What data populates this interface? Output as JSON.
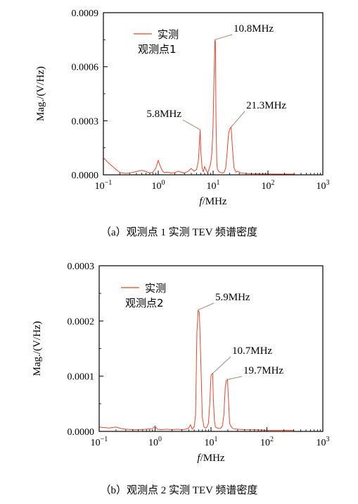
{
  "chart_data": [
    {
      "type": "line",
      "x_scale": "log",
      "xlim": [
        0.1,
        1000
      ],
      "ylim": [
        0,
        0.0009
      ],
      "xlabel_italic": "f",
      "xlabel_rest": "/MHz",
      "ylabel": "Mag./(V/Hz)",
      "x_ticks": [
        0.1,
        1,
        10,
        100,
        1000
      ],
      "x_tick_bases": [
        "10",
        "10",
        "10",
        "10",
        "10"
      ],
      "x_tick_exps": [
        "−1",
        "0",
        "1",
        "2",
        "3"
      ],
      "y_ticks": [
        0,
        0.0003,
        0.0006,
        0.0009
      ],
      "y_tick_labels": [
        "0.0000",
        "0.0003",
        "0.0006",
        "0.0009"
      ],
      "series": [
        {
          "name": "实测",
          "name_line2": "观测点1",
          "color": "#e8452c",
          "x": [
            0.1,
            0.13,
            0.17,
            0.2,
            0.25,
            0.3,
            0.4,
            0.5,
            0.6,
            0.7,
            0.8,
            0.9,
            1.0,
            1.05,
            1.1,
            1.2,
            1.3,
            1.5,
            1.7,
            2.0,
            2.3,
            2.6,
            3.0,
            3.5,
            4.0,
            4.5,
            5.0,
            5.4,
            5.8,
            6.0,
            6.3,
            6.6,
            7.0,
            7.5,
            8.0,
            8.5,
            9.0,
            9.5,
            10.0,
            10.4,
            10.8,
            11.0,
            11.3,
            11.7,
            12.0,
            13.0,
            14.0,
            15.0,
            16.0,
            17.0,
            18.0,
            19.0,
            20.0,
            21.3,
            22.5,
            24.0,
            26.0,
            28.0,
            32.0,
            40.0,
            50.0,
            70.0,
            100.0,
            150.0,
            200.0,
            300.0
          ],
          "y": [
            9.5e-05,
            6e-05,
            3e-05,
            1.2e-05,
            8e-06,
            1e-05,
            1.8e-05,
            2.5e-05,
            1.8e-05,
            1e-05,
            1.5e-05,
            3.5e-05,
            8e-05,
            6e-05,
            4.5e-05,
            2e-05,
            1.2e-05,
            1.5e-05,
            1e-05,
            1.2e-05,
            2e-05,
            1.5e-05,
            1e-05,
            2e-05,
            3.5e-05,
            2e-05,
            3e-05,
            8e-05,
            0.00025,
            0.00012,
            4e-05,
            1.5e-05,
            4.5e-05,
            2.5e-05,
            1e-05,
            3.5e-05,
            6e-05,
            0.00012,
            0.00028,
            0.00055,
            0.00075,
            0.00074,
            0.0003,
            6e-05,
            3e-05,
            1.5e-05,
            1.2e-05,
            1e-05,
            1.5e-05,
            4e-05,
            0.00012,
            0.00022,
            0.000255,
            0.000265,
            0.00015,
            4e-05,
            1.5e-05,
            2e-05,
            1e-05,
            8e-06,
            6e-06,
            5e-06,
            5e-06,
            4e-06,
            4e-06,
            4e-06
          ]
        }
      ],
      "annotations": [
        {
          "text": "10.8MHz",
          "x": 10.8,
          "y": 0.00075
        },
        {
          "text": "5.8MHz",
          "x": 5.8,
          "y": 0.00025
        },
        {
          "text": "21.3MHz",
          "x": 21.3,
          "y": 0.000265
        }
      ],
      "caption": "（a）观测点 1 实测 TEV 频谱密度"
    },
    {
      "type": "line",
      "x_scale": "log",
      "xlim": [
        0.1,
        1000
      ],
      "ylim": [
        0,
        0.0003
      ],
      "xlabel_italic": "f",
      "xlabel_rest": "/MHz",
      "ylabel": "Mag./(V/Hz)",
      "x_ticks": [
        0.1,
        1,
        10,
        100,
        1000
      ],
      "x_tick_bases": [
        "10",
        "10",
        "10",
        "10",
        "10"
      ],
      "x_tick_exps": [
        "−1",
        "0",
        "1",
        "2",
        "3"
      ],
      "y_ticks": [
        0,
        0.0001,
        0.0002,
        0.0003
      ],
      "y_tick_labels": [
        "0.0000",
        "0.0001",
        "0.0002",
        "0.0003"
      ],
      "series": [
        {
          "name": "实测",
          "name_line2": "观测点2",
          "color": "#e8452c",
          "x": [
            0.1,
            0.15,
            0.2,
            0.25,
            0.3,
            0.4,
            0.5,
            0.7,
            0.9,
            1.0,
            1.1,
            1.3,
            1.6,
            2.0,
            2.5,
            3.0,
            3.5,
            4.0,
            4.3,
            4.6,
            5.0,
            5.3,
            5.6,
            5.9,
            6.2,
            6.6,
            7.0,
            7.5,
            8.0,
            8.5,
            9.0,
            9.5,
            10.0,
            10.3,
            10.7,
            11.0,
            11.5,
            12.0,
            13.0,
            14.0,
            15.0,
            16.0,
            17.0,
            18.0,
            18.8,
            19.7,
            20.5,
            21.5,
            23.0,
            25.0,
            30.0,
            40.0,
            60.0,
            100.0,
            150.0,
            200.0,
            300.0
          ],
          "y": [
            8e-06,
            6e-06,
            8e-06,
            5e-06,
            4e-06,
            3e-06,
            3e-06,
            4e-06,
            5e-06,
            1e-05,
            4e-06,
            3e-06,
            4e-06,
            3e-06,
            4e-06,
            3e-06,
            4e-06,
            6e-06,
            1.2e-05,
            4e-06,
            8e-06,
            3e-05,
            0.00018,
            0.00022,
            0.000215,
            0.00012,
            2.5e-05,
            8e-06,
            6e-06,
            8e-06,
            1.5e-05,
            5e-05,
            0.0001,
            0.000104,
            0.000105,
            6e-05,
            2e-05,
            8e-06,
            6e-06,
            5e-06,
            6e-06,
            1e-05,
            3e-05,
            8e-05,
            9.2e-05,
            9.4e-05,
            6e-05,
            1.5e-05,
            8e-06,
            5e-06,
            4e-06,
            3e-06,
            3e-06,
            2e-06,
            2e-06,
            2e-06,
            2e-06
          ]
        }
      ],
      "annotations": [
        {
          "text": "5.9MHz",
          "x": 5.9,
          "y": 0.00022
        },
        {
          "text": "10.7MHz",
          "x": 10.7,
          "y": 0.000105
        },
        {
          "text": "19.7MHz",
          "x": 19.7,
          "y": 9.4e-05
        }
      ],
      "caption": "（b）观测点 2 实测 TEV 频谱密度"
    }
  ]
}
